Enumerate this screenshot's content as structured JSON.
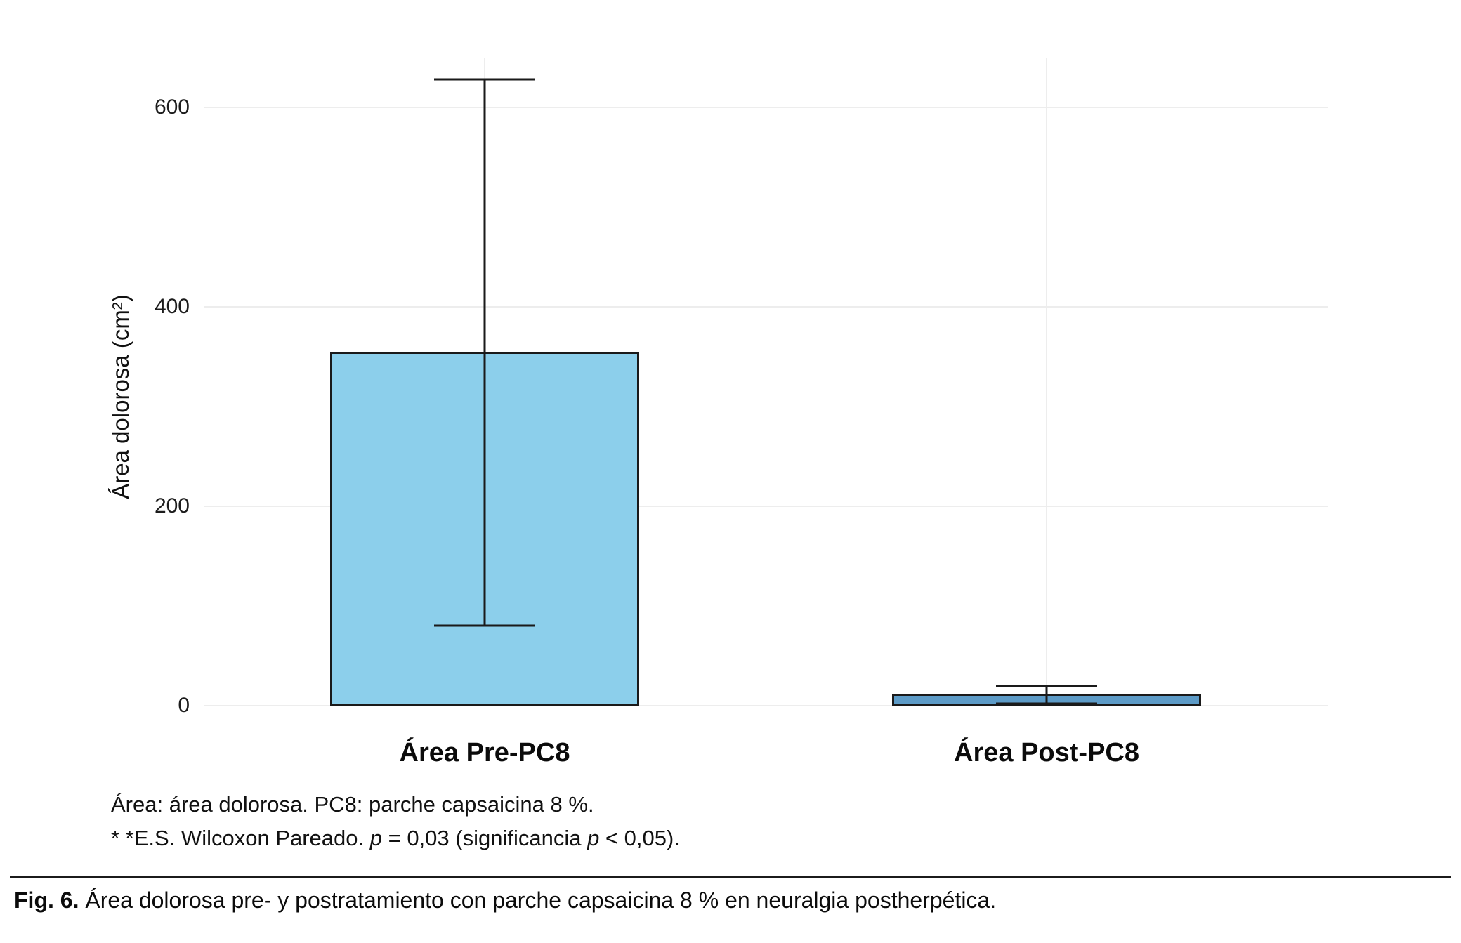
{
  "chart_data": {
    "type": "bar",
    "title": "",
    "xlabel": "",
    "ylabel": "Área dolorosa (cm²)",
    "categories": [
      "Área Pre-PC8",
      "Área Post-PC8"
    ],
    "values": [
      355,
      12
    ],
    "error_bars": [
      {
        "lower": 80,
        "upper": 628
      },
      {
        "lower": 2,
        "upper": 20
      }
    ],
    "bar_colors": [
      "#8ccfeb",
      "#5d9bc7"
    ],
    "bar_outline_color": "#1a1a1a",
    "error_bar_color": "#1a1a1a",
    "ylim": [
      0,
      650
    ],
    "yticks": [
      0,
      200,
      400,
      600
    ],
    "grid": "light horizontal lines at y ticks, light vertical lines at category centers",
    "legend": "none"
  },
  "footnotes": {
    "line1": "Área: área dolorosa. PC8: parche capsaicina 8 %.",
    "line2": {
      "prefix": "* *E.S. Wilcoxon Pareado. ",
      "italic1": "p",
      "middle": " = 0,03 (significancia ",
      "italic2": "p",
      "suffix": " < 0,05)."
    }
  },
  "caption": {
    "label": "Fig. 6.",
    "text": "Área dolorosa pre- y postratamiento con parche capsaicina 8 % en neuralgia postherpética."
  }
}
